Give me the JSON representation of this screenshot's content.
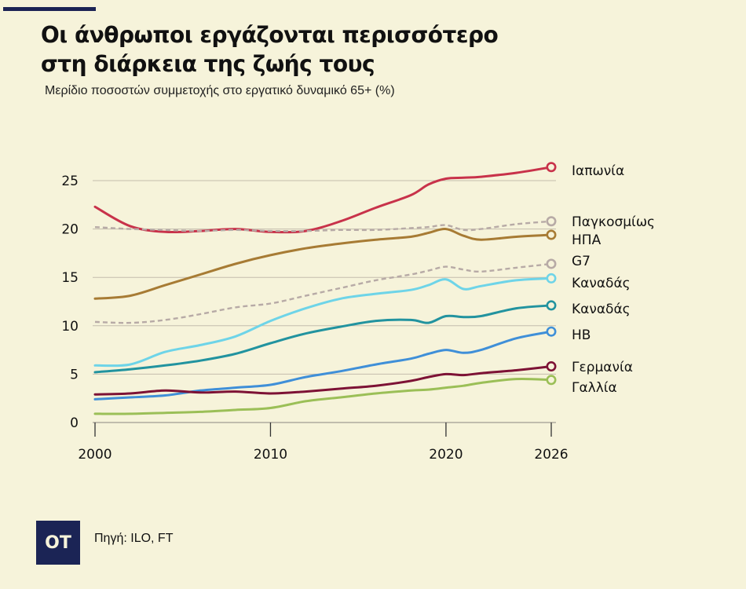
{
  "title_line1": "Οι άνθρωποι εργάζονται περισσότερο",
  "title_line2": "στη διάρκεια της ζωής τους",
  "subtitle": "Μερίδιο ποσοστών συμμετοχής στο εργατικό δυναμικό 65+ (%)",
  "source": "Πηγή: ILO, FT",
  "logo_text": "OT",
  "chart_data": {
    "type": "line",
    "title": "Οι άνθρωποι εργάζονται περισσότερο στη διάρκεια της ζωής τους",
    "subtitle": "Μερίδιο ποσοστών συμμετοχής στο εργατικό δυναμικό 65+ (%)",
    "xlabel": "",
    "ylabel": "",
    "xlim": [
      2000,
      2026
    ],
    "ylim": [
      0,
      25
    ],
    "x_ticks": [
      "2000",
      "2010",
      "2020",
      "2026"
    ],
    "y_ticks": [
      "0",
      "5",
      "10",
      "15",
      "20",
      "25"
    ],
    "grid": "horizontal",
    "legend": "right end labels",
    "x": [
      2000,
      2002,
      2004,
      2006,
      2008,
      2010,
      2012,
      2014,
      2016,
      2018,
      2019,
      2020,
      2021,
      2022,
      2024,
      2026
    ],
    "series": [
      {
        "name": "Ιαπωνία",
        "color": "#c8324a",
        "dashed": false,
        "values": [
          22.3,
          20.3,
          19.7,
          19.8,
          20.0,
          19.7,
          19.8,
          20.8,
          22.2,
          23.5,
          24.6,
          25.2,
          25.3,
          25.4,
          25.8,
          26.4
        ]
      },
      {
        "name": "Παγκοσμίως",
        "color": "#b7aaa6",
        "dashed": true,
        "values": [
          20.2,
          20.0,
          19.9,
          19.8,
          19.9,
          19.8,
          19.8,
          19.9,
          19.9,
          20.1,
          20.2,
          20.4,
          19.9,
          20.0,
          20.5,
          20.8
        ]
      },
      {
        "name": "ΗΠΑ",
        "color": "#a77b34",
        "dashed": false,
        "values": [
          12.8,
          13.1,
          14.2,
          15.3,
          16.4,
          17.3,
          18.0,
          18.5,
          18.9,
          19.2,
          19.6,
          20.0,
          19.3,
          18.9,
          19.2,
          19.4
        ]
      },
      {
        "name": "G7",
        "color": "#b7aaa6",
        "dashed": true,
        "values": [
          10.4,
          10.3,
          10.6,
          11.2,
          11.9,
          12.3,
          13.1,
          13.9,
          14.7,
          15.3,
          15.7,
          16.1,
          15.8,
          15.6,
          16.0,
          16.4
        ]
      },
      {
        "name": "Καναδάς",
        "color": "#6ed4e8",
        "dashed": false,
        "values": [
          5.9,
          6.0,
          7.3,
          8.0,
          8.9,
          10.5,
          11.8,
          12.8,
          13.3,
          13.7,
          14.2,
          14.8,
          13.8,
          14.1,
          14.7,
          14.9
        ]
      },
      {
        "name": "Καναδάς",
        "color": "#22939f",
        "dashed": false,
        "values": [
          5.2,
          5.5,
          5.9,
          6.4,
          7.1,
          8.2,
          9.2,
          9.9,
          10.5,
          10.6,
          10.3,
          11.0,
          10.9,
          11.0,
          11.8,
          12.1
        ]
      },
      {
        "name": "ΗΒ",
        "color": "#3f8fd8",
        "dashed": false,
        "values": [
          2.4,
          2.6,
          2.8,
          3.3,
          3.6,
          3.9,
          4.7,
          5.3,
          6.0,
          6.6,
          7.1,
          7.5,
          7.2,
          7.5,
          8.7,
          9.4
        ]
      },
      {
        "name": "Γερμανία",
        "color": "#7d1235",
        "dashed": false,
        "values": [
          2.9,
          3.0,
          3.3,
          3.1,
          3.2,
          3.0,
          3.2,
          3.5,
          3.8,
          4.3,
          4.7,
          5.0,
          4.9,
          5.1,
          5.4,
          5.8
        ]
      },
      {
        "name": "Γαλλία",
        "color": "#9bbf57",
        "dashed": false,
        "values": [
          0.9,
          0.9,
          1.0,
          1.1,
          1.3,
          1.5,
          2.2,
          2.6,
          3.0,
          3.3,
          3.4,
          3.6,
          3.8,
          4.1,
          4.5,
          4.4
        ]
      }
    ]
  }
}
